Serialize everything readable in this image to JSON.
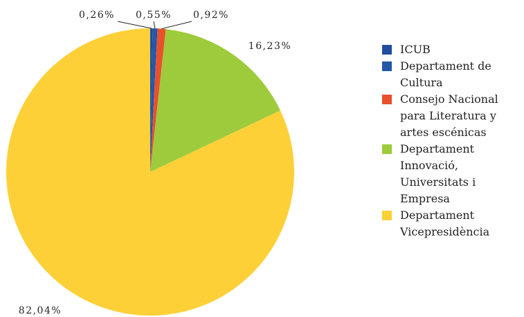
{
  "chart_data": {
    "type": "pie",
    "categories": [
      "ICUB",
      "Departament de Cultura",
      "Consejo Nacional  para Literatura y artes escénicas",
      "Departament Innovació, Universitats i Empresa",
      "Departament Vicepresidència"
    ],
    "values": [
      0.26,
      0.55,
      0.92,
      16.23,
      82.04
    ],
    "value_labels": [
      "0,26%",
      "0,55%",
      "0,92%",
      "16,23%",
      "82,04%"
    ],
    "colors": [
      "#1f4e9c",
      "#2457a8",
      "#e9502e",
      "#9dcb3c",
      "#fdd038"
    ],
    "legend": "right"
  }
}
